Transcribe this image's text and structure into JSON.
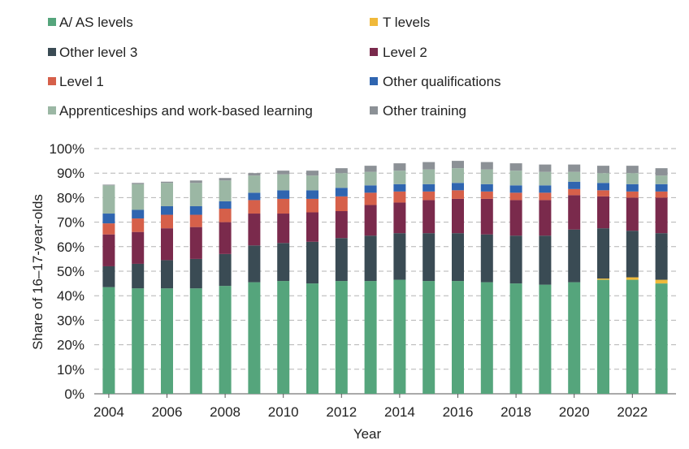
{
  "chart_data": {
    "type": "bar",
    "stacked": true,
    "xlabel": "Year",
    "ylabel": "Share of 16–17-year-olds",
    "ylim": [
      0,
      100
    ],
    "yticks": [
      "0%",
      "10%",
      "20%",
      "30%",
      "40%",
      "50%",
      "60%",
      "70%",
      "80%",
      "90%",
      "100%"
    ],
    "xtick_labels": [
      "2004",
      "2006",
      "2008",
      "2010",
      "2012",
      "2014",
      "2016",
      "2018",
      "2020",
      "2022"
    ],
    "grid": true,
    "legend_position": "top",
    "categories": [
      "2004",
      "2005",
      "2006",
      "2007",
      "2008",
      "2009",
      "2010",
      "2011",
      "2012",
      "2013",
      "2014",
      "2015",
      "2016",
      "2017",
      "2018",
      "2019",
      "2020",
      "2021",
      "2022",
      "2023"
    ],
    "series": [
      {
        "name": "A/ AS levels",
        "color": "#55a57c",
        "values": [
          43.5,
          43,
          43,
          43,
          44,
          45.5,
          46,
          45,
          46,
          46,
          46.5,
          46,
          46,
          45.5,
          45,
          44.5,
          45.5,
          46.5,
          46.5,
          45
        ]
      },
      {
        "name": "T levels",
        "color": "#f0b93a",
        "values": [
          0,
          0,
          0,
          0,
          0,
          0,
          0,
          0,
          0,
          0,
          0,
          0,
          0,
          0,
          0,
          0,
          0,
          0.5,
          1,
          1.5
        ]
      },
      {
        "name": "Other level 3",
        "color": "#3a4b54",
        "values": [
          8.5,
          10,
          11.5,
          12,
          13,
          15,
          15.5,
          17,
          17.5,
          18.5,
          19,
          19.5,
          19.5,
          19.5,
          19.5,
          20,
          21.5,
          20.5,
          19,
          19
        ]
      },
      {
        "name": "Level 2",
        "color": "#7a2a4c",
        "values": [
          13,
          13,
          13,
          13,
          13,
          13,
          12,
          12,
          11,
          12.5,
          12.5,
          13.5,
          14,
          14.5,
          14.5,
          14.5,
          14,
          13,
          13.5,
          14.5
        ]
      },
      {
        "name": "Level 1",
        "color": "#d6604a",
        "values": [
          4.5,
          5.5,
          5.5,
          5,
          5.5,
          5.5,
          6,
          5.5,
          6,
          5,
          4.5,
          3.5,
          3.5,
          3,
          3,
          3,
          2.5,
          2.5,
          2.5,
          2.5
        ]
      },
      {
        "name": "Other qualifications",
        "color": "#2f65b0",
        "values": [
          4,
          3.5,
          3.5,
          3.5,
          3,
          3,
          3.5,
          3.5,
          3.5,
          3,
          3,
          3,
          3,
          3,
          3,
          3,
          3,
          3,
          3,
          3
        ]
      },
      {
        "name": "Apprenticeships and work-based learning",
        "color": "#9bb7a4",
        "values": [
          11.5,
          10.5,
          9.5,
          9.5,
          8.5,
          7,
          6.5,
          6,
          6,
          5.5,
          5.5,
          6,
          6,
          6,
          6,
          5.5,
          4,
          4,
          4.5,
          3.5
        ]
      },
      {
        "name": "Other training",
        "color": "#8c9196",
        "values": [
          0.3,
          0.5,
          0.5,
          1,
          1,
          1,
          1.5,
          2,
          2,
          2.5,
          3,
          3,
          3,
          3,
          3,
          3,
          3,
          3,
          3,
          3
        ]
      }
    ]
  }
}
